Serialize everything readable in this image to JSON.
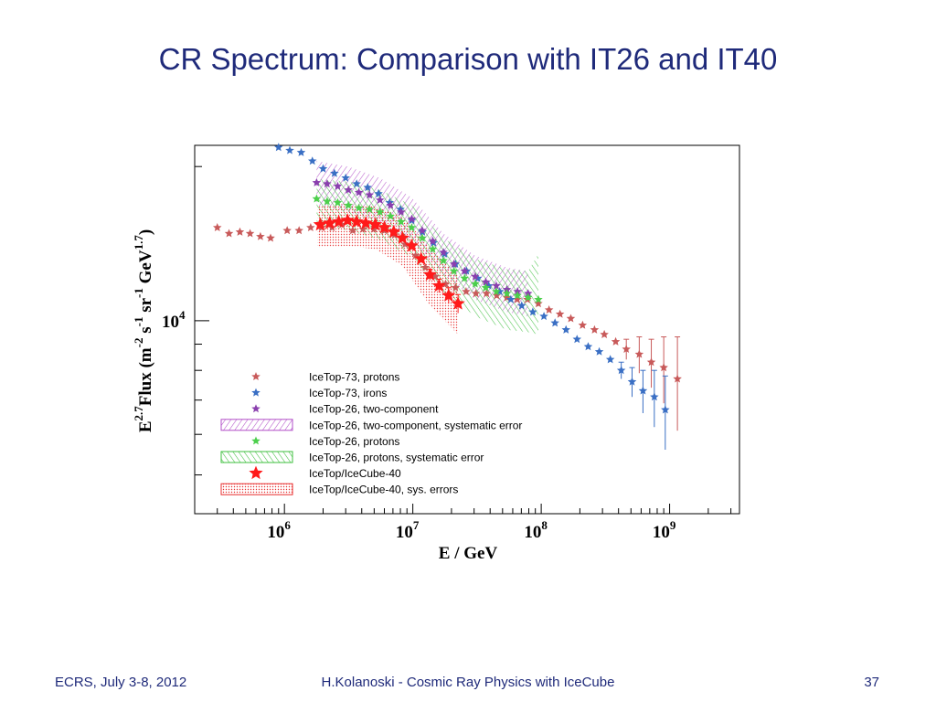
{
  "slide": {
    "title": "CR Spectrum: Comparison with IT26 and IT40",
    "footer_left": "ECRS, July 3-8, 2012",
    "footer_center": "H.Kolanoski - Cosmic Ray Physics with IceCube",
    "footer_right": "37"
  },
  "chart_data": {
    "type": "scatter",
    "title": "",
    "xlabel": "E / GeV",
    "ylabel_parts": [
      "E",
      "2.7",
      "Flux (m",
      "-2",
      " s",
      "-1",
      " sr",
      "-1",
      " GeV",
      "1.7",
      ")"
    ],
    "x_scale": "log",
    "y_scale": "log",
    "xlim": [
      200000,
      3500000000
    ],
    "ylim": [
      4200,
      22000
    ],
    "x_ticks": [
      {
        "base": "10",
        "exp": "6",
        "value": 1000000
      },
      {
        "base": "10",
        "exp": "7",
        "value": 10000000
      },
      {
        "base": "10",
        "exp": "8",
        "value": 100000000
      },
      {
        "base": "10",
        "exp": "9",
        "value": 1000000000
      }
    ],
    "y_ticks": [
      {
        "base": "10",
        "exp": "4",
        "value": 10000
      }
    ],
    "grid": false,
    "legend_position": "lower-left",
    "series": [
      {
        "name": "IceTop-73, protons",
        "marker": "star",
        "color": "#c85a5a",
        "size": "small",
        "x": [
          300000,
          370000,
          450000,
          540000,
          650000,
          780000,
          1050000,
          1300000,
          1600000,
          1950000,
          2350000,
          2800000,
          3400000,
          4100000,
          5000000,
          6000000,
          7200000,
          8700000,
          10500000,
          12500000,
          15000000,
          18000000,
          21500000,
          26000000,
          31000000,
          37500000,
          45000000,
          54000000,
          65000000,
          78000000,
          95000000,
          115000000,
          140000000,
          170000000,
          210000000,
          260000000,
          310000000,
          380000000,
          460000000,
          580000000,
          720000000,
          900000000,
          1150000000
        ],
        "y": [
          15200,
          14800,
          14900,
          14800,
          14600,
          14500,
          15000,
          15000,
          15200,
          15200,
          15200,
          15400,
          15000,
          15100,
          15100,
          15000,
          14700,
          14100,
          13400,
          12700,
          12200,
          11800,
          11600,
          11400,
          11300,
          11300,
          11200,
          11100,
          11000,
          11000,
          10800,
          10500,
          10300,
          10100,
          9800,
          9600,
          9400,
          9100,
          8800,
          8600,
          8300,
          8100,
          7700
        ],
        "y_err": [
          0,
          0,
          0,
          0,
          0,
          0,
          0,
          0,
          0,
          0,
          0,
          0,
          0,
          0,
          0,
          0,
          0,
          0,
          0,
          0,
          0,
          0,
          0,
          0,
          0,
          0,
          0,
          0,
          0,
          0,
          0,
          0,
          0,
          0,
          0,
          0,
          0,
          0,
          400,
          700,
          900,
          1200,
          1600
        ]
      },
      {
        "name": "IceTop-73, irons",
        "marker": "star",
        "color": "#3a6fc4",
        "size": "small",
        "x": [
          900000,
          1100000,
          1350000,
          1650000,
          2000000,
          2450000,
          3000000,
          3650000,
          4450000,
          5400000,
          6600000,
          8000000,
          9800000,
          11900000,
          14500000,
          17700000,
          21500000,
          26200000,
          32000000,
          39000000,
          47500000,
          58000000,
          70500000,
          86000000,
          105000000,
          128000000,
          156000000,
          190000000,
          232000000,
          283000000,
          345000000,
          420000000,
          510000000,
          620000000,
          760000000,
          925000000
        ],
        "y": [
          21800,
          21500,
          21300,
          20500,
          19800,
          19400,
          19000,
          18500,
          18200,
          17700,
          17000,
          16500,
          15700,
          14900,
          14200,
          13500,
          12900,
          12500,
          12100,
          11700,
          11400,
          11000,
          10700,
          10400,
          10200,
          9900,
          9600,
          9200,
          8900,
          8700,
          8400,
          8000,
          7600,
          7300,
          7100,
          6700
        ],
        "y_err": [
          0,
          0,
          0,
          0,
          0,
          0,
          0,
          0,
          0,
          0,
          0,
          0,
          0,
          0,
          0,
          0,
          0,
          0,
          0,
          0,
          0,
          0,
          0,
          0,
          0,
          0,
          0,
          0,
          0,
          0,
          0,
          300,
          500,
          700,
          900,
          1100
        ]
      },
      {
        "name": "IceTop-26, two-component",
        "marker": "star",
        "color": "#8a3fae",
        "size": "small",
        "x": [
          1780000,
          2150000,
          2600000,
          3150000,
          3800000,
          4600000,
          5550000,
          6700000,
          8100000,
          9800000,
          11850000,
          14300000,
          17300000,
          20900000,
          25300000,
          30600000,
          37000000,
          44700000,
          54000000,
          65300000,
          79000000
        ],
        "y": [
          18600,
          18500,
          18300,
          18000,
          17800,
          17600,
          17200,
          16800,
          16300,
          15800,
          15000,
          14300,
          13600,
          12900,
          12500,
          12200,
          11900,
          11700,
          11500,
          11400,
          11300
        ]
      },
      {
        "name": "IceTop-26, two-component, systematic error",
        "marker": "band",
        "fill": "hatch-purple",
        "color": "#b24fc8",
        "x": [
          1780000,
          3150000,
          5550000,
          9800000,
          17300000,
          30600000,
          54000000,
          79000000
        ],
        "y_low": [
          16800,
          16300,
          15600,
          14300,
          12300,
          11000,
          10400,
          10200
        ],
        "y_high": [
          20500,
          20000,
          19000,
          17400,
          14800,
          13400,
          12700,
          12500
        ]
      },
      {
        "name": "IceTop-26, protons",
        "marker": "star",
        "color": "#4ccf4c",
        "size": "small",
        "x": [
          1780000,
          2150000,
          2600000,
          3150000,
          3800000,
          4600000,
          5550000,
          6700000,
          8100000,
          9800000,
          11850000,
          14300000,
          17300000,
          20900000,
          25300000,
          30600000,
          37000000,
          44700000,
          54000000,
          65300000,
          79000000,
          95000000
        ],
        "y": [
          17300,
          17100,
          17000,
          16800,
          16600,
          16500,
          16300,
          16000,
          15600,
          15200,
          14500,
          13800,
          13100,
          12500,
          12100,
          11800,
          11600,
          11400,
          11300,
          11200,
          11100,
          11000
        ]
      },
      {
        "name": "IceTop-26, protons, systematic error",
        "marker": "band",
        "fill": "hatch-green",
        "color": "#3cbf3c",
        "x": [
          1780000,
          3150000,
          5550000,
          9800000,
          17300000,
          30600000,
          54000000,
          79000000,
          95000000
        ],
        "y_low": [
          15400,
          15000,
          14400,
          13300,
          11400,
          10200,
          9600,
          9500,
          9400
        ],
        "y_high": [
          18900,
          18700,
          18000,
          16800,
          14500,
          13200,
          12600,
          12500,
          13500
        ]
      },
      {
        "name": "IceTop/IceCube-40",
        "marker": "star",
        "color": "#ff1a1a",
        "size": "large",
        "x": [
          1900000,
          2250000,
          2650000,
          3100000,
          3650000,
          4300000,
          5100000,
          6000000,
          7100000,
          8300000,
          9800000,
          11600000,
          13600000,
          16000000,
          19000000,
          22500000
        ],
        "y": [
          15400,
          15500,
          15600,
          15700,
          15600,
          15500,
          15400,
          15200,
          14900,
          14500,
          14000,
          13200,
          12300,
          11700,
          11200,
          10800
        ],
        "y_err": [
          0,
          0,
          0,
          0,
          0,
          0,
          0,
          0,
          0,
          0,
          0,
          0,
          300,
          350,
          400,
          450
        ]
      },
      {
        "name": "IceTop/IceCube-40, sys. errors",
        "marker": "band",
        "fill": "dots-red",
        "color": "#e83030",
        "x": [
          1800000,
          3100000,
          5100000,
          8300000,
          13600000,
          22500000
        ],
        "y_low": [
          13900,
          14000,
          13800,
          12800,
          10700,
          9400
        ],
        "y_high": [
          16800,
          16900,
          16700,
          16000,
          13900,
          12300
        ]
      }
    ]
  }
}
